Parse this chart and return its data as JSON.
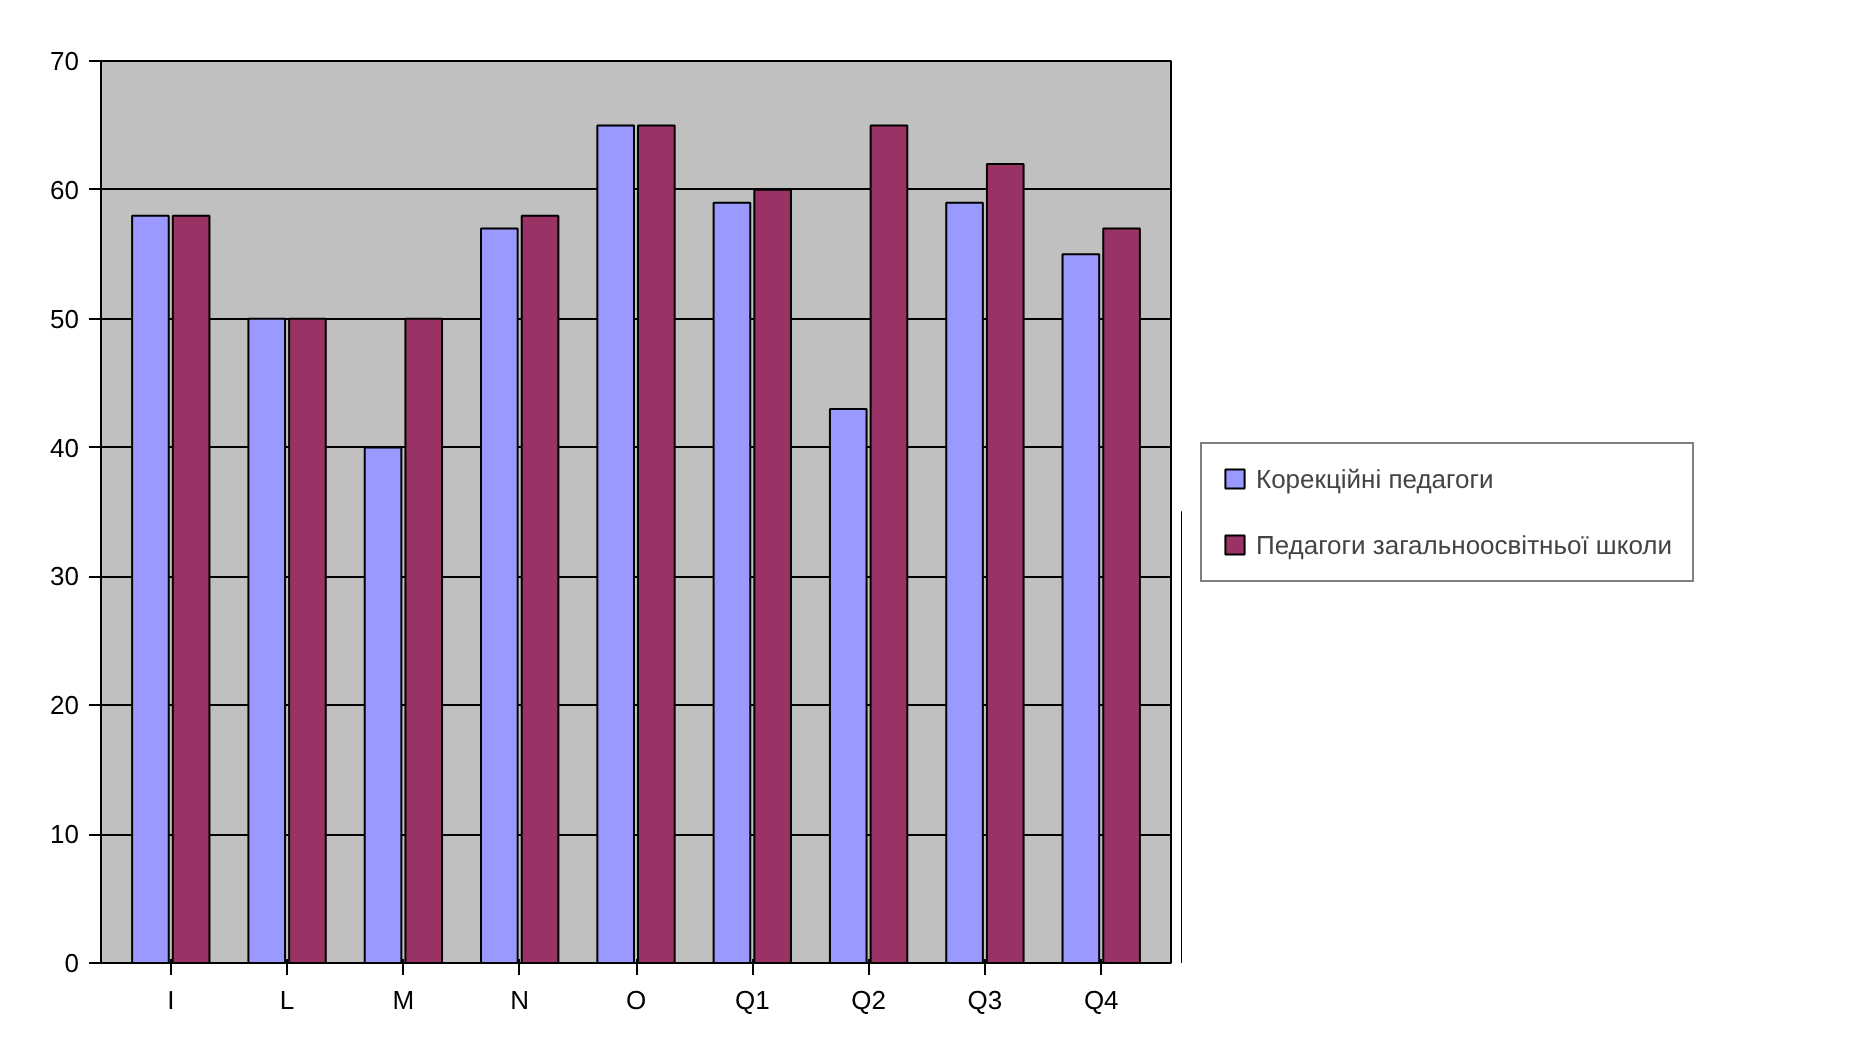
{
  "chart_data": {
    "type": "bar",
    "categories": [
      "I",
      "L",
      "M",
      "N",
      "O",
      "Q1",
      "Q2",
      "Q3",
      "Q4"
    ],
    "series": [
      {
        "name": "Корекційні педагоги",
        "color": "#9999ff",
        "values": [
          58,
          50,
          40,
          57,
          65,
          59,
          43,
          59,
          55
        ]
      },
      {
        "name": "Педагоги загальноосвітньої школи",
        "color": "#993366",
        "values": [
          58,
          50,
          50,
          58,
          65,
          60,
          65,
          62,
          57
        ]
      }
    ],
    "ylim": [
      0,
      70
    ],
    "yticks": [
      0,
      10,
      20,
      30,
      40,
      50,
      60,
      70
    ],
    "grid": "y",
    "legend": "right"
  }
}
